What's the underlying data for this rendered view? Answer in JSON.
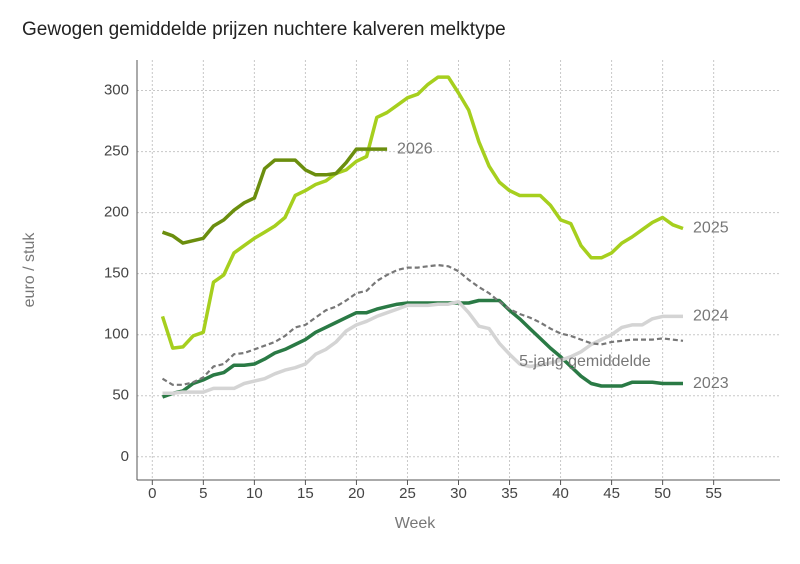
{
  "chart_data": {
    "type": "line",
    "title": "Gewogen gemiddelde prijzen nuchtere kalveren melktype",
    "x_label": "Week",
    "y_label": "euro / stuk",
    "x": [
      1,
      2,
      3,
      4,
      5,
      6,
      7,
      8,
      9,
      10,
      11,
      12,
      13,
      14,
      15,
      16,
      17,
      18,
      19,
      20,
      21,
      22,
      23,
      24,
      25,
      26,
      27,
      28,
      29,
      30,
      31,
      32,
      33,
      34,
      35,
      36,
      37,
      38,
      39,
      40,
      41,
      42,
      43,
      44,
      45,
      46,
      47,
      48,
      49,
      50,
      51,
      52
    ],
    "series": [
      {
        "name": "2023",
        "color": "#2a7a45",
        "values": [
          49,
          52,
          54,
          60,
          63,
          67,
          69,
          75,
          75,
          76,
          80,
          85,
          88,
          92,
          96,
          102,
          106,
          110,
          114,
          118,
          118,
          121,
          123,
          125,
          126,
          126,
          126,
          126,
          126,
          126,
          126,
          128,
          128,
          128,
          120,
          113,
          105,
          97,
          89,
          82,
          74,
          66,
          60,
          58,
          58,
          58,
          61,
          61,
          61,
          60,
          60,
          60
        ]
      },
      {
        "name": "2024",
        "color": "#d4d4d4",
        "values": [
          52,
          52,
          53,
          53,
          53,
          56,
          56,
          56,
          60,
          62,
          64,
          68,
          71,
          73,
          76,
          84,
          88,
          94,
          103,
          108,
          111,
          115,
          118,
          121,
          124,
          124,
          124,
          125,
          125,
          127,
          118,
          107,
          105,
          93,
          84,
          76,
          74,
          75,
          77,
          79,
          82,
          86,
          92,
          96,
          100,
          106,
          108,
          108,
          113,
          115,
          115,
          115
        ]
      },
      {
        "name": "2025",
        "color": "#a6cf1e",
        "values": [
          115,
          89,
          90,
          99,
          102,
          143,
          149,
          167,
          173,
          179,
          184,
          189,
          196,
          214,
          218,
          223,
          226,
          232,
          235,
          242,
          246,
          278,
          282,
          288,
          294,
          297,
          305,
          311,
          311,
          298,
          284,
          258,
          238,
          225,
          218,
          214,
          214,
          214,
          206,
          194,
          191,
          173,
          163,
          163,
          167,
          175,
          180,
          186,
          192,
          196,
          190,
          187
        ]
      },
      {
        "name": "2026",
        "color": "#6b8e0e",
        "values": [
          184,
          181,
          175,
          177,
          179,
          189,
          194,
          202,
          208,
          212,
          236,
          243,
          243,
          243,
          235,
          231,
          231,
          232,
          241,
          252,
          252,
          252,
          252,
          null,
          null,
          null,
          null,
          null,
          null,
          null,
          null,
          null,
          null,
          null,
          null,
          null,
          null,
          null,
          null,
          null,
          null,
          null,
          null,
          null,
          null,
          null,
          null,
          null,
          null,
          null,
          null,
          null
        ]
      },
      {
        "name": "5-jarig gemiddelde",
        "color": "#777777",
        "dashed": true,
        "values": [
          64,
          59,
          59,
          61,
          65,
          74,
          76,
          84,
          85,
          88,
          91,
          94,
          99,
          106,
          108,
          114,
          120,
          123,
          128,
          134,
          136,
          144,
          149,
          153,
          155,
          155,
          156,
          157,
          156,
          152,
          145,
          139,
          134,
          127,
          121,
          117,
          114,
          110,
          105,
          101,
          99,
          96,
          93,
          92,
          94,
          95,
          96,
          96,
          96,
          97,
          96,
          95
        ]
      }
    ],
    "xlim": [
      -1.5,
      61.5
    ],
    "ylim": [
      -19,
      325
    ],
    "xticks": [
      0,
      5,
      10,
      15,
      20,
      25,
      30,
      35,
      40,
      45,
      50,
      55
    ],
    "yticks": [
      0,
      50,
      100,
      150,
      200,
      250,
      300
    ],
    "grid": true
  }
}
